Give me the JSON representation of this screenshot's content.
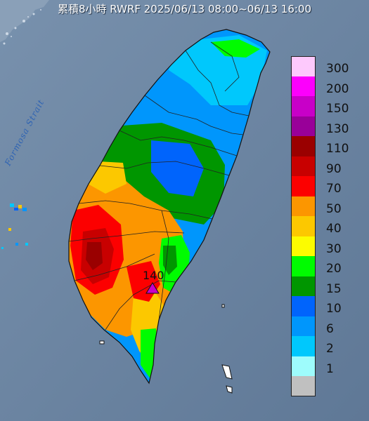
{
  "title": "累積8小時 RWRF 2025/06/13 08:00~06/13 16:00",
  "strait_label": "Formosa Strait",
  "max_label": "140",
  "legend": [
    {
      "label": "300",
      "color": "#fdc9fc"
    },
    {
      "label": "200",
      "color": "#fc00fc"
    },
    {
      "label": "150",
      "color": "#c800c8"
    },
    {
      "label": "130",
      "color": "#990099"
    },
    {
      "label": "110",
      "color": "#9a0000"
    },
    {
      "label": "90",
      "color": "#c80000"
    },
    {
      "label": "70",
      "color": "#fc0000"
    },
    {
      "label": "50",
      "color": "#fc9600"
    },
    {
      "label": "40",
      "color": "#fcc800"
    },
    {
      "label": "30",
      "color": "#fcfc00"
    },
    {
      "label": "20",
      "color": "#00fc00"
    },
    {
      "label": "15",
      "color": "#009600"
    },
    {
      "label": "10",
      "color": "#0064fc"
    },
    {
      "label": "6",
      "color": "#0096fc"
    },
    {
      "label": "2",
      "color": "#00c8fc"
    },
    {
      "label": "1",
      "color": "#9efcfc"
    },
    {
      "label": "",
      "color": "#c0c0c0"
    }
  ]
}
